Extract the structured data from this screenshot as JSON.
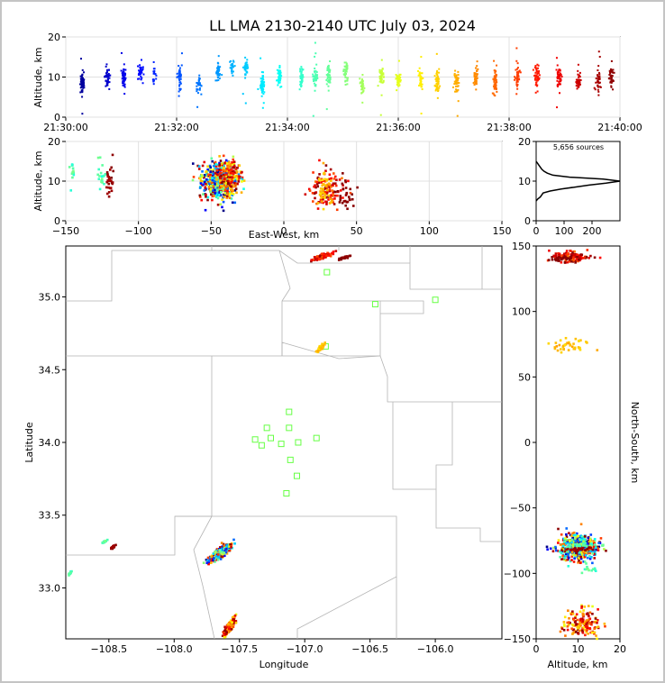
{
  "title": "LL LMA 2130-2140 UTC July 03, 2024",
  "colors": {
    "frame": "#c4c4c4",
    "grid": "#e0e0e0",
    "border": "#b4b4b4",
    "station": "#66ff44"
  },
  "chart_data": [
    {
      "id": "time-height",
      "type": "scatter",
      "ylabel": "Altitude, km",
      "xlim_minutes": [
        0,
        10
      ],
      "ylim": [
        0,
        20
      ],
      "xticks": [
        "21:30:00",
        "21:32:00",
        "21:34:00",
        "21:36:00",
        "21:38:00",
        "21:40:00"
      ],
      "yticks": [
        "0",
        "10",
        "20"
      ],
      "color_scale": "time (blue to red)",
      "grid": true,
      "bursts": [
        {
          "t": 0.3,
          "alt": 9,
          "spread": 2.5,
          "n": 60
        },
        {
          "t": 0.75,
          "alt": 10,
          "spread": 2,
          "n": 40
        },
        {
          "t": 1.05,
          "alt": 10,
          "spread": 2,
          "n": 45
        },
        {
          "t": 1.35,
          "alt": 11,
          "spread": 2,
          "n": 35
        },
        {
          "t": 1.6,
          "alt": 10,
          "spread": 2,
          "n": 20
        },
        {
          "t": 2.05,
          "alt": 10,
          "spread": 3,
          "n": 40
        },
        {
          "t": 2.4,
          "alt": 8,
          "spread": 1.5,
          "n": 30
        },
        {
          "t": 2.75,
          "alt": 11,
          "spread": 2,
          "n": 35
        },
        {
          "t": 3.0,
          "alt": 12,
          "spread": 2,
          "n": 25
        },
        {
          "t": 3.25,
          "alt": 12,
          "spread": 2,
          "n": 35
        },
        {
          "t": 3.55,
          "alt": 8,
          "spread": 2,
          "n": 55
        },
        {
          "t": 3.85,
          "alt": 10,
          "spread": 2,
          "n": 45
        },
        {
          "t": 4.25,
          "alt": 10,
          "spread": 2,
          "n": 45
        },
        {
          "t": 4.5,
          "alt": 10,
          "spread": 2,
          "n": 40
        },
        {
          "t": 4.75,
          "alt": 10,
          "spread": 2,
          "n": 45
        },
        {
          "t": 5.05,
          "alt": 11,
          "spread": 2.5,
          "n": 40
        },
        {
          "t": 5.35,
          "alt": 8,
          "spread": 2,
          "n": 30
        },
        {
          "t": 5.7,
          "alt": 10,
          "spread": 2,
          "n": 45
        },
        {
          "t": 6.0,
          "alt": 9,
          "spread": 2,
          "n": 35
        },
        {
          "t": 6.4,
          "alt": 9,
          "spread": 2,
          "n": 40
        },
        {
          "t": 6.7,
          "alt": 9,
          "spread": 2.5,
          "n": 50
        },
        {
          "t": 7.05,
          "alt": 9,
          "spread": 2.5,
          "n": 45
        },
        {
          "t": 7.4,
          "alt": 10,
          "spread": 2,
          "n": 40
        },
        {
          "t": 7.75,
          "alt": 9,
          "spread": 2.5,
          "n": 50
        },
        {
          "t": 8.15,
          "alt": 10,
          "spread": 2,
          "n": 50
        },
        {
          "t": 8.5,
          "alt": 10,
          "spread": 2.5,
          "n": 50
        },
        {
          "t": 8.9,
          "alt": 10,
          "spread": 2.5,
          "n": 45
        },
        {
          "t": 9.25,
          "alt": 9,
          "spread": 2.5,
          "n": 40
        },
        {
          "t": 9.6,
          "alt": 9,
          "spread": 2.5,
          "n": 40
        },
        {
          "t": 9.85,
          "alt": 10,
          "spread": 2,
          "n": 35
        }
      ]
    },
    {
      "id": "ew-altitude",
      "type": "scatter",
      "xlabel": "East-West, km",
      "ylabel": "Altitude, km",
      "xlim": [
        -150,
        150
      ],
      "ylim": [
        0,
        20
      ],
      "xticks": [
        -150,
        -100,
        -50,
        0,
        50,
        100,
        150
      ],
      "yticks": [
        0,
        10,
        20
      ],
      "grid": true
    },
    {
      "id": "altitude-histogram",
      "type": "line",
      "annotation": "5,656 sources",
      "xlim": [
        0,
        300
      ],
      "ylim": [
        0,
        20
      ],
      "xticks": [
        0,
        100,
        200
      ],
      "yticks": [
        0,
        10,
        20
      ],
      "profile": [
        [
          0,
          5
        ],
        [
          6,
          5.5
        ],
        [
          15,
          6
        ],
        [
          25,
          7
        ],
        [
          50,
          7.5
        ],
        [
          90,
          8
        ],
        [
          140,
          8.5
        ],
        [
          190,
          9
        ],
        [
          250,
          9.5
        ],
        [
          300,
          10
        ],
        [
          240,
          10.5
        ],
        [
          120,
          11
        ],
        [
          60,
          11.5
        ],
        [
          40,
          12
        ],
        [
          28,
          12.5
        ],
        [
          20,
          13
        ],
        [
          15,
          13.5
        ],
        [
          10,
          14
        ],
        [
          5,
          14.5
        ],
        [
          0,
          15
        ]
      ]
    },
    {
      "id": "plan-view",
      "type": "scatter",
      "xlabel": "Longitude",
      "ylabel": "Latitude",
      "xlim": [
        -108.83,
        -105.49
      ],
      "ylim": [
        32.65,
        35.35
      ],
      "xticks": [
        -108.5,
        -108.0,
        -107.5,
        -107.0,
        -106.5,
        -106.0
      ],
      "xtick_labels": [
        "−108.5",
        "−108.0",
        "−107.5",
        "−107.0",
        "−106.5",
        "−106.0"
      ],
      "yticks": [
        33.0,
        33.5,
        34.0,
        34.5,
        35.0
      ],
      "ytick_labels": [
        "33.0",
        "33.5",
        "34.0",
        "34.5",
        "35.0"
      ],
      "stations": [
        [
          -107.12,
          34.21
        ],
        [
          -107.29,
          34.1
        ],
        [
          -107.12,
          34.1
        ],
        [
          -107.38,
          34.02
        ],
        [
          -107.26,
          34.03
        ],
        [
          -107.33,
          33.98
        ],
        [
          -107.18,
          33.99
        ],
        [
          -107.05,
          34.0
        ],
        [
          -106.91,
          34.03
        ],
        [
          -107.11,
          33.88
        ],
        [
          -107.06,
          33.77
        ],
        [
          -107.14,
          33.65
        ],
        [
          -106.83,
          35.17
        ],
        [
          -106.46,
          34.95
        ],
        [
          -106.0,
          34.98
        ],
        [
          -106.84,
          34.66
        ]
      ]
    },
    {
      "id": "ns-altitude",
      "type": "scatter",
      "xlabel": "Altitude, km",
      "ylabel": "North-South, km",
      "xlim": [
        0,
        20
      ],
      "ylim": [
        -150,
        150
      ],
      "xticks": [
        0,
        10,
        20
      ],
      "yticks": [
        -150,
        -100,
        -50,
        0,
        50,
        100,
        150
      ]
    }
  ],
  "clusters": [
    {
      "lon": -107.65,
      "lat": 33.24,
      "ew": -45,
      "ns": -80,
      "alt": 10,
      "sx": 0.06,
      "sy": 0.045,
      "n": 520,
      "cmin": 0.0,
      "cmax": 1.0
    },
    {
      "lon": -107.58,
      "lat": 32.73,
      "ew": -38,
      "ns": -138,
      "alt": 11,
      "sx": 0.035,
      "sy": 0.05,
      "n": 160,
      "cmin": 0.6,
      "cmax": 1.0
    },
    {
      "lon": -106.86,
      "lat": 35.28,
      "ew": 30,
      "ns": 142,
      "alt": 8,
      "sx": 0.05,
      "sy": 0.02,
      "n": 110,
      "cmin": 0.75,
      "cmax": 1.0
    },
    {
      "lon": -106.88,
      "lat": 34.65,
      "ew": 28,
      "ns": 74,
      "alt": 8,
      "sx": 0.02,
      "sy": 0.02,
      "n": 40,
      "cmin": 0.65,
      "cmax": 0.72
    },
    {
      "lon": -108.47,
      "lat": 33.28,
      "ew": -120,
      "ns": -82,
      "alt": 10,
      "sx": 0.01,
      "sy": 0.008,
      "n": 30,
      "cmin": 0.95,
      "cmax": 1.0
    },
    {
      "lon": -108.53,
      "lat": 33.32,
      "ew": -125,
      "ns": -78,
      "alt": 11,
      "sx": 0.015,
      "sy": 0.01,
      "n": 20,
      "cmin": 0.4,
      "cmax": 0.5
    },
    {
      "lon": -108.8,
      "lat": 33.1,
      "ew": -146,
      "ns": -97,
      "alt": 12,
      "sx": 0.01,
      "sy": 0.01,
      "n": 12,
      "cmin": 0.4,
      "cmax": 0.5
    },
    {
      "lon": -106.7,
      "lat": 35.27,
      "ew": 42,
      "ns": 140,
      "alt": 6,
      "sx": 0.03,
      "sy": 0.01,
      "n": 30,
      "cmin": 0.98,
      "cmax": 1.0
    }
  ]
}
